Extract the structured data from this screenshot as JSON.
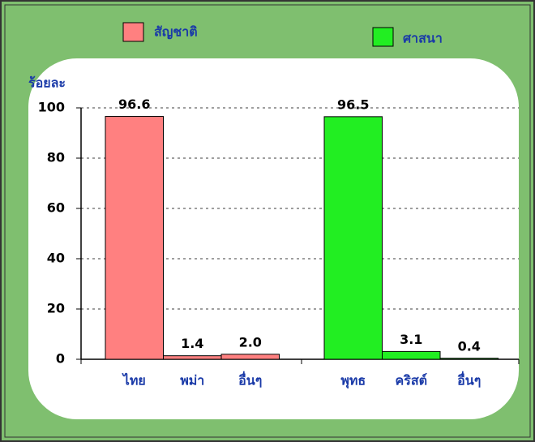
{
  "chart_data": {
    "type": "bar",
    "ylabel": "ร้อยละ",
    "categories": [
      "ไทย",
      "พม่า",
      "อื่นๆ",
      "พุทธ",
      "คริสต์",
      "อื่นๆ"
    ],
    "series": [
      {
        "name": "สัญชาติ",
        "color": "#ff8080",
        "values": [
          96.6,
          1.4,
          2.0,
          null,
          null,
          null
        ],
        "value_labels": [
          "96.6",
          "1.4",
          "2.0",
          null,
          null,
          null
        ]
      },
      {
        "name": "ศาสนา",
        "color": "#22ee22",
        "values": [
          null,
          null,
          null,
          96.5,
          3.1,
          0.4
        ]
      }
    ],
    "ylim": [
      0,
      100
    ],
    "yticks": [
      0,
      20,
      40,
      60,
      80,
      100
    ],
    "grid": true
  }
}
